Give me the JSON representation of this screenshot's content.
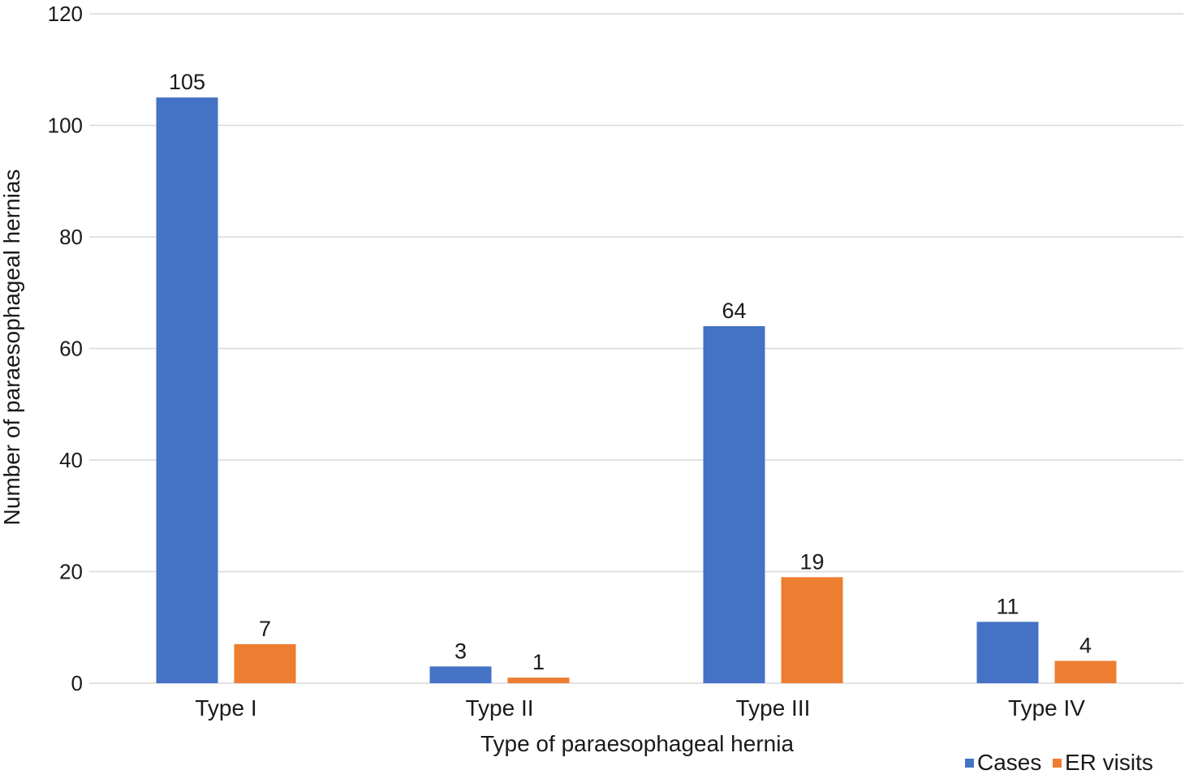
{
  "chart_data": {
    "type": "bar",
    "title": "",
    "xlabel": "Type of paraesophageal hernia",
    "ylabel": "Number of paraesophageal hernias",
    "categories": [
      "Type I",
      "Type II",
      "Type III",
      "Type IV"
    ],
    "series": [
      {
        "name": "Cases",
        "color": "#4472c4",
        "values": [
          105,
          3,
          64,
          11
        ]
      },
      {
        "name": "ER visits",
        "color": "#ed7d31",
        "values": [
          7,
          1,
          19,
          4
        ]
      }
    ],
    "ylim": [
      0,
      120
    ],
    "yticks": [
      0,
      20,
      40,
      60,
      80,
      100,
      120
    ],
    "grid": true,
    "legend": "bottom-right",
    "data_labels": true
  }
}
